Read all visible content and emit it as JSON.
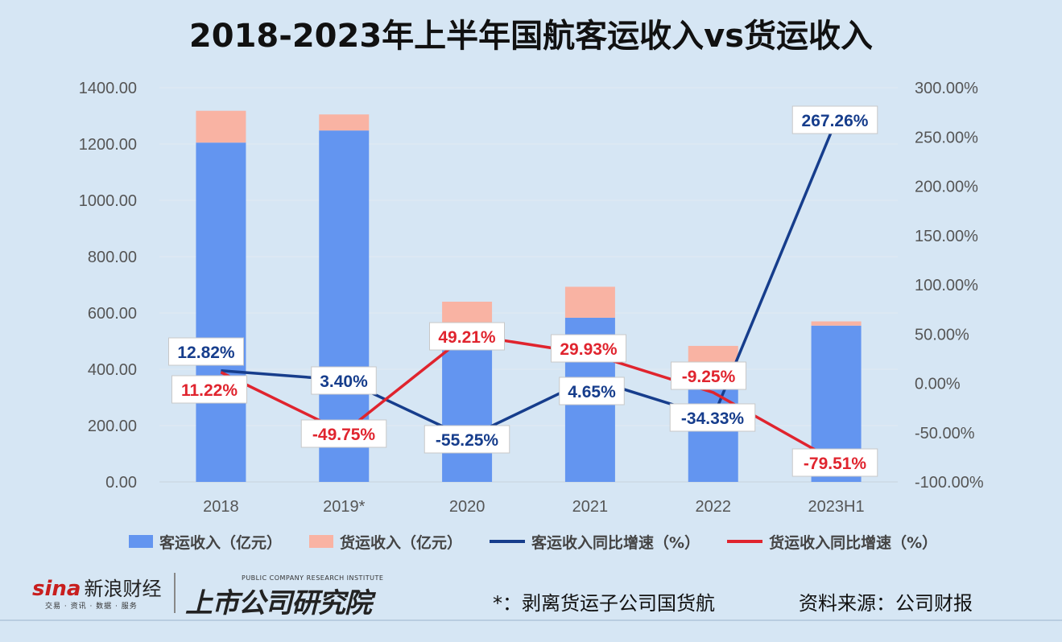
{
  "title": "2018-2023年上半年国航客运收入vs货运收入",
  "chart_data": {
    "type": "bar",
    "categories": [
      "2018",
      "2019*",
      "2020",
      "2021",
      "2022",
      "2023H1"
    ],
    "stacked": true,
    "series": [
      {
        "name": "客运收入（亿元）",
        "type": "bar",
        "axis": "left",
        "color": "#6395f0",
        "values": [
          1205,
          1248,
          475,
          583,
          340,
          555
        ]
      },
      {
        "name": "货运收入（亿元）",
        "type": "bar",
        "axis": "left",
        "color": "#f9b3a3",
        "values": [
          113,
          57,
          165,
          110,
          143,
          15
        ]
      },
      {
        "name": "客运收入同比增速（%）",
        "type": "line",
        "axis": "right",
        "color": "#163d8c",
        "values": [
          12.82,
          3.4,
          -55.25,
          4.65,
          -34.33,
          267.26
        ],
        "labels": [
          "12.82%",
          "3.40%",
          "-55.25%",
          "4.65%",
          "-34.33%",
          "267.26%"
        ]
      },
      {
        "name": "货运收入同比增速（%）",
        "type": "line",
        "axis": "right",
        "color": "#e0242e",
        "values": [
          11.22,
          -49.75,
          49.21,
          29.93,
          -9.25,
          -79.51
        ],
        "labels": [
          "11.22%",
          "-49.75%",
          "49.21%",
          "29.93%",
          "-9.25%",
          "-79.51%"
        ]
      }
    ],
    "ylim": [
      0,
      1400
    ],
    "y2lim": [
      -100,
      300
    ],
    "yticks": [
      "0.00",
      "200.00",
      "400.00",
      "600.00",
      "800.00",
      "1000.00",
      "1200.00",
      "1400.00"
    ],
    "y2ticks": [
      "-100.00%",
      "-50.00%",
      "0.00%",
      "50.00%",
      "100.00%",
      "150.00%",
      "200.00%",
      "250.00%",
      "300.00%"
    ],
    "grid": true,
    "legend": "bottom"
  },
  "footer": {
    "sina_en": "sina",
    "sina_cn": "新浪财经",
    "sina_sub": "交易 · 资讯 · 数据 · 服务",
    "institute": "上市公司研究院",
    "institute_sub": "PUBLIC COMPANY RESEARCH INSTITUTE",
    "footnote": "*：剥离货运子公司国货航",
    "source": "资料来源：公司财报"
  }
}
